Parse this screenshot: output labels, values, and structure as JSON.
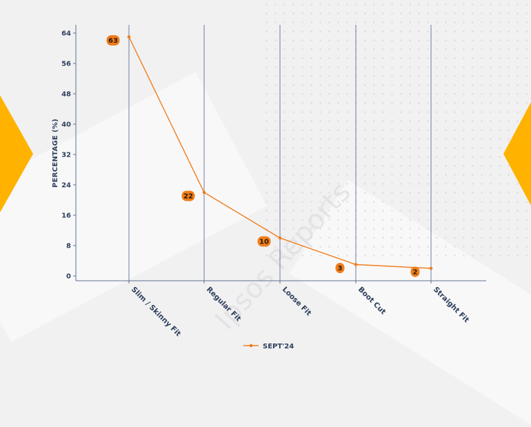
{
  "chart_data": {
    "type": "line",
    "categories": [
      "Slim / Skinny Fit",
      "Regular Fit",
      "Loose Fit",
      "Boot Cut",
      "Straight Fit"
    ],
    "series": [
      {
        "name": "SEPT'24",
        "values": [
          63,
          22,
          10,
          3,
          2
        ],
        "color": "#f07d1b"
      }
    ],
    "xlabel": "",
    "ylabel": "PERCENTAGE (%)",
    "ylim": [
      0,
      64
    ],
    "yticks": [
      0,
      8,
      16,
      24,
      32,
      40,
      48,
      56,
      64
    ],
    "grid": "vertical",
    "legend": "bottom-center"
  },
  "colors": {
    "accent": "#f07d1b",
    "chevron": "#ffb300",
    "axis_text": "#2e3f5c",
    "gridline": "#5b6f8f"
  }
}
